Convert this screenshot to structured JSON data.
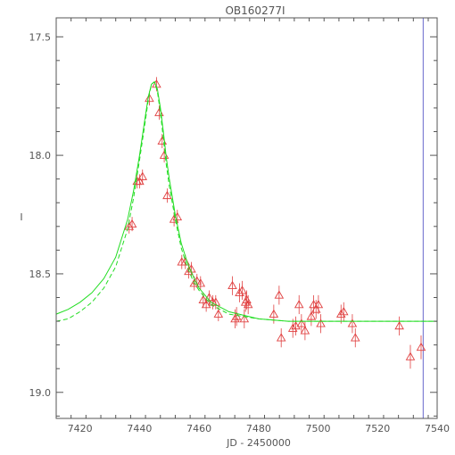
{
  "chart_data": {
    "type": "scatter",
    "title": "OB160277I",
    "xlabel": "JD - 2450000",
    "ylabel": "I",
    "xlim": [
      7412,
      7540
    ],
    "ylim": [
      19.11,
      17.42
    ],
    "y_inverted": true,
    "x_ticks": [
      7420,
      7440,
      7460,
      7480,
      7500,
      7520,
      7540
    ],
    "y_ticks": [
      17.5,
      18.0,
      18.5,
      19.0
    ],
    "y_tick_labels": [
      "17.5",
      "18.0",
      "18.5",
      "19.0"
    ],
    "grid": false,
    "vertical_marker_x": 7535.3,
    "colors": {
      "axis": "#555555",
      "points": "#e04040",
      "model": "#22dd22",
      "marker_line": "#6666cc"
    },
    "series": [
      {
        "kind": "points",
        "marker": "triangle",
        "x": [
          7436.5,
          7437.5,
          7439.2,
          7440.0,
          7441.0,
          7443.3,
          7445.7,
          7446.6,
          7447.6,
          7448.3,
          7449.3,
          7451.6,
          7452.7,
          7454.2,
          7455.4,
          7456.5,
          7457.4,
          7458.4,
          7459.3,
          7460.5,
          7461.4,
          7462.4,
          7463.4,
          7464.6,
          7465.6,
          7466.5,
          7471.2,
          7472.1,
          7472.6,
          7473.6,
          7474.5,
          7475.2,
          7475.6,
          7476.0,
          7476.5,
          7485.1,
          7486.9,
          7487.6,
          7491.5,
          7492.5,
          7493.6,
          7494.4,
          7495.6,
          7497.7,
          7498.5,
          7499.3,
          7500.1,
          7500.9,
          7507.7,
          7508.6,
          7511.5,
          7512.5,
          7527.3,
          7531.0,
          7534.6
        ],
        "y": [
          18.3,
          18.29,
          18.11,
          18.11,
          18.09,
          17.76,
          17.7,
          17.82,
          17.94,
          18.0,
          18.17,
          18.27,
          18.26,
          18.45,
          18.45,
          18.49,
          18.48,
          18.54,
          18.53,
          18.54,
          18.61,
          18.63,
          18.6,
          18.62,
          18.62,
          18.67,
          18.55,
          18.69,
          18.68,
          18.58,
          18.57,
          18.69,
          18.62,
          18.61,
          18.63,
          18.67,
          18.59,
          18.77,
          18.73,
          18.72,
          18.63,
          18.71,
          18.74,
          18.68,
          18.63,
          18.65,
          18.63,
          18.71,
          18.67,
          18.66,
          18.71,
          18.77,
          18.72,
          18.85,
          18.81
        ],
        "err": [
          0.03,
          0.03,
          0.03,
          0.03,
          0.03,
          0.03,
          0.03,
          0.03,
          0.03,
          0.03,
          0.03,
          0.03,
          0.03,
          0.03,
          0.03,
          0.03,
          0.03,
          0.03,
          0.03,
          0.03,
          0.03,
          0.03,
          0.03,
          0.03,
          0.03,
          0.03,
          0.04,
          0.04,
          0.04,
          0.04,
          0.04,
          0.04,
          0.04,
          0.04,
          0.04,
          0.04,
          0.04,
          0.04,
          0.04,
          0.04,
          0.04,
          0.04,
          0.04,
          0.04,
          0.04,
          0.04,
          0.04,
          0.04,
          0.04,
          0.04,
          0.04,
          0.04,
          0.04,
          0.05,
          0.05
        ]
      },
      {
        "kind": "line",
        "style": "solid",
        "x": [
          7412,
          7416,
          7420,
          7424,
          7428,
          7432,
          7436,
          7438,
          7440,
          7442,
          7443,
          7444,
          7445,
          7446,
          7447,
          7448,
          7449,
          7450,
          7452,
          7454,
          7456,
          7458,
          7460,
          7464,
          7470,
          7480,
          7490,
          7500,
          7520,
          7540
        ],
        "y": [
          18.67,
          18.65,
          18.62,
          18.58,
          18.52,
          18.43,
          18.27,
          18.15,
          18.0,
          17.83,
          17.75,
          17.7,
          17.69,
          17.72,
          17.8,
          17.9,
          18.01,
          18.1,
          18.25,
          18.37,
          18.45,
          18.51,
          18.56,
          18.62,
          18.66,
          18.69,
          18.7,
          18.7,
          18.7,
          18.7
        ]
      },
      {
        "kind": "line",
        "style": "dashed",
        "x": [
          7412,
          7416,
          7420,
          7424,
          7428,
          7432,
          7436,
          7438,
          7440,
          7442,
          7443,
          7444,
          7445,
          7446,
          7447,
          7448,
          7449,
          7450,
          7452,
          7454,
          7456,
          7458,
          7460,
          7464,
          7470,
          7480,
          7490,
          7500,
          7520,
          7540
        ],
        "y": [
          18.7,
          18.69,
          18.66,
          18.62,
          18.56,
          18.47,
          18.31,
          18.18,
          18.02,
          17.85,
          17.76,
          17.7,
          17.69,
          17.73,
          17.82,
          17.93,
          18.04,
          18.13,
          18.27,
          18.39,
          18.47,
          18.53,
          18.57,
          18.63,
          18.67,
          18.69,
          18.7,
          18.7,
          18.7,
          18.7
        ]
      }
    ]
  }
}
